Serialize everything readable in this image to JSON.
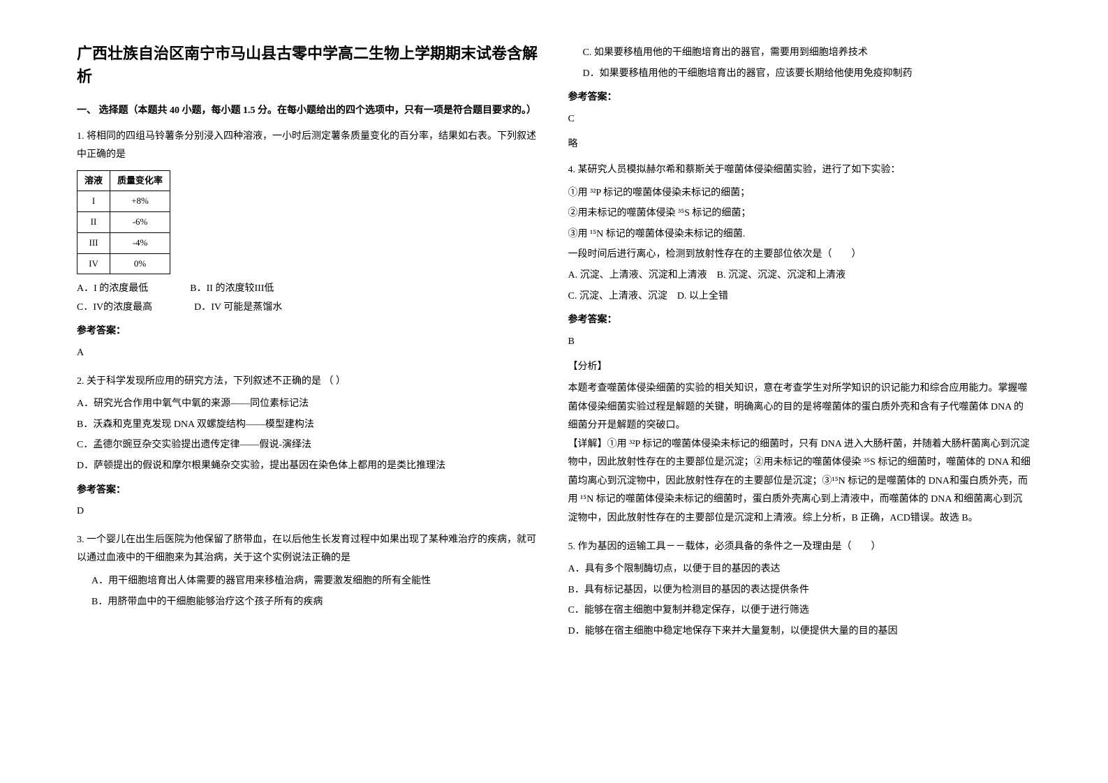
{
  "title": "广西壮族自治区南宁市马山县古零中学高二生物上学期期末试卷含解析",
  "section1_header": "一、 选择题（本题共 40 小题，每小题 1.5 分。在每小题给出的四个选项中，只有一项是符合题目要求的。）",
  "q1": {
    "text": "1. 将相同的四组马铃薯条分别浸入四种溶液，一小时后测定薯条质量变化的百分率，结果如右表。下列叙述中正确的是",
    "table": {
      "header1": "溶液",
      "header2": "质量变化率",
      "rows": [
        {
          "c1": "I",
          "c2": "+8%"
        },
        {
          "c1": "II",
          "c2": "-6%"
        },
        {
          "c1": "III",
          "c2": "-4%"
        },
        {
          "c1": "IV",
          "c2": "0%"
        }
      ]
    },
    "optA": "A．I 的浓度最低",
    "optB": "B．II 的浓度较III低",
    "optC": "C．IV的浓度最高",
    "optD": "D．IV 可能是蒸馏水",
    "answer_label": "参考答案：",
    "answer": "A"
  },
  "q2": {
    "text": "2. 关于科学发现所应用的研究方法，下列叙述不正确的是   （ ）",
    "optA": "A．研究光合作用中氧气中氧的来源——同位素标记法",
    "optB": "B．沃森和克里克发现 DNA 双螺旋结构——模型建构法",
    "optC": "C．孟德尔豌豆杂交实验提出遗传定律——假说-演绎法",
    "optD": "D．萨顿提出的假说和摩尔根果蝇杂交实验，提出基因在染色体上都用的是类比推理法",
    "answer_label": "参考答案：",
    "answer": "D"
  },
  "q3": {
    "text": "3. 一个婴儿在出生后医院为他保留了脐带血，在以后他生长发育过程中如果出现了某种难治疗的疾病，就可以通过血液中的干细胞来为其治病，关于这个实例说法正确的是",
    "optA": "A．用干细胞培育出人体需要的器官用来移植治病，需要激发细胞的所有全能性",
    "optB": "B．用脐带血中的干细胞能够治疗这个孩子所有的疾病",
    "optC": "C. 如果要移植用他的干细胞培育出的器官，需要用到细胞培养技术",
    "optD": "D．如果要移植用他的干细胞培育出的器官，应该要长期给他使用免疫抑制药",
    "answer_label": "参考答案：",
    "answer": "C",
    "extra": "略"
  },
  "q4": {
    "text": "4. 某研究人员模拟赫尔希和蔡斯关于噬菌体侵染细菌实验，进行了如下实验：",
    "line1": "①用 ³²P 标记的噬菌体侵染未标记的细菌；",
    "line2": "②用未标记的噬菌体侵染 ³⁵S 标记的细菌；",
    "line3": "③用 ¹⁵N 标记的噬菌体侵染未标记的细菌.",
    "line4": "一段时间后进行离心，检测到放射性存在的主要部位依次是（　　）",
    "optA": "A. 沉淀、上清液、沉淀和上清液",
    "optB": "B. 沉淀、沉淀、沉淀和上清液",
    "optC": "C. 沉淀、上清液、沉淀",
    "optD": "D. 以上全错",
    "answer_label": "参考答案：",
    "answer": "B",
    "analysis_label": "【分析】",
    "analysis": "本题考查噬菌体侵染细菌的实验的相关知识，意在考查学生对所学知识的识记能力和综合应用能力。掌握噬菌体侵染细菌实验过程是解题的关键，明确离心的目的是将噬菌体的蛋白质外壳和含有子代噬菌体 DNA 的细菌分开是解题的突破口。",
    "detail_label": "【详解】",
    "detail": "①用 ³²P 标记的噬菌体侵染未标记的细菌时，只有 DNA 进入大肠杆菌，并随着大肠杆菌离心到沉淀物中，因此放射性存在的主要部位是沉淀；②用未标记的噬菌体侵染 ³⁵S 标记的细菌时，噬菌体的 DNA 和细菌均离心到沉淀物中，因此放射性存在的主要部位是沉淀；③¹⁵N 标记的是噬菌体的 DNA和蛋白质外壳，而用 ¹⁵N 标记的噬菌体侵染未标记的细菌时，蛋白质外壳离心到上清液中，而噬菌体的 DNA 和细菌离心到沉淀物中，因此放射性存在的主要部位是沉淀和上清液。综上分析，B 正确，ACD错误。故选 B。"
  },
  "q5": {
    "text": "5. 作为基因的运输工具－－载体，必须具备的条件之一及理由是（　　）",
    "optA": "A．具有多个限制酶切点，以便于目的基因的表达",
    "optB": "B．具有标记基因，以便为检测目的基因的表达提供条件",
    "optC": "C．能够在宿主细胞中复制并稳定保存，以便于进行筛选",
    "optD": "D．能够在宿主细胞中稳定地保存下来并大量复制，以便提供大量的目的基因"
  }
}
